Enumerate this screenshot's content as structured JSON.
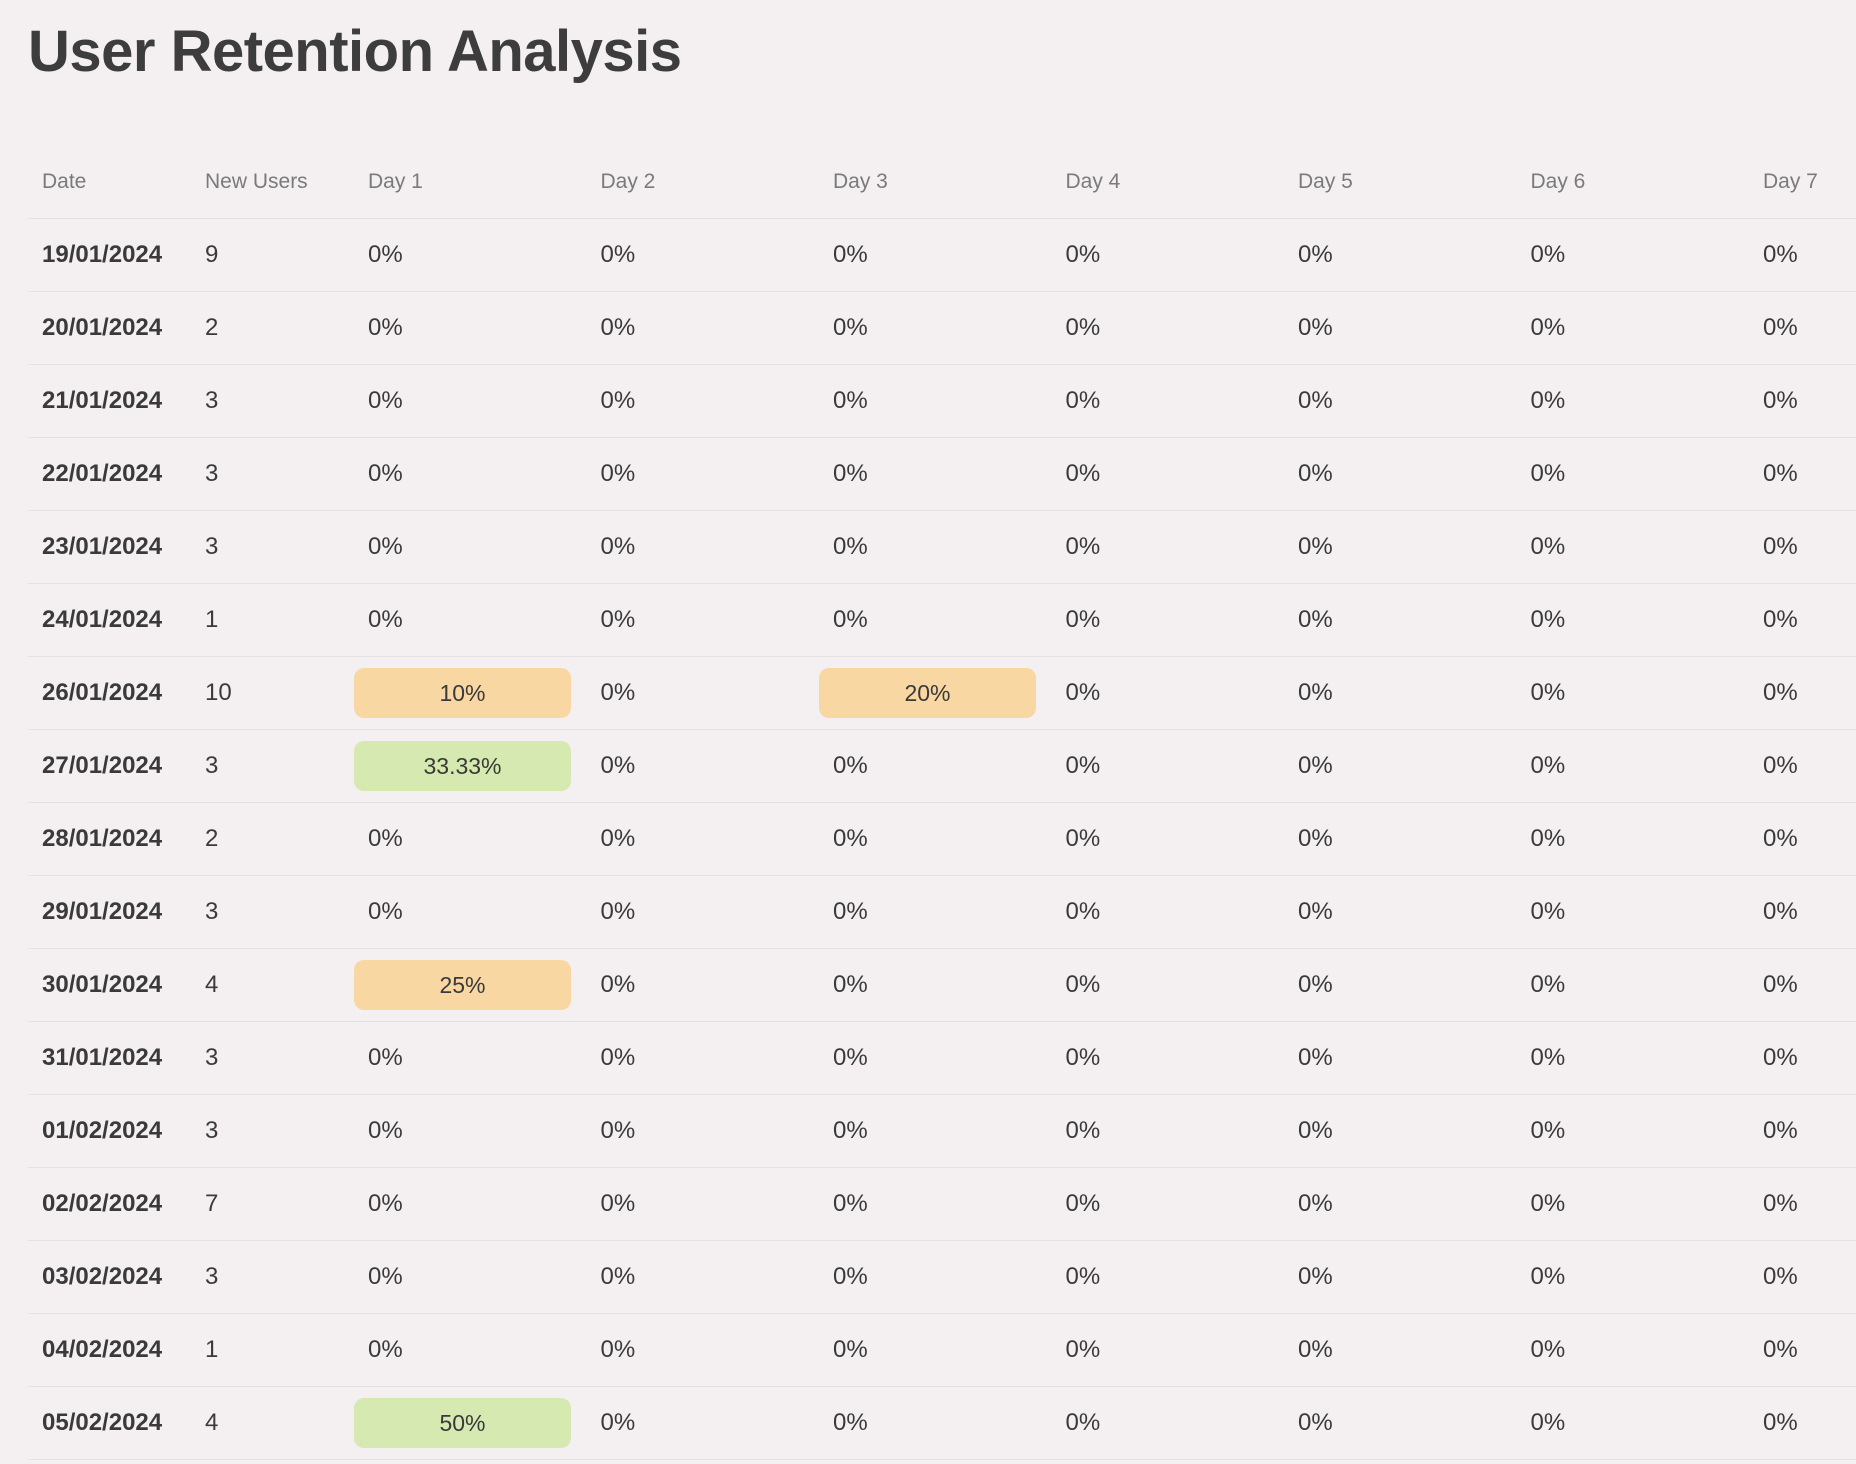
{
  "page": {
    "title": "User Retention Analysis"
  },
  "table": {
    "headers": [
      "Date",
      "New Users",
      "Day 1",
      "Day 2",
      "Day 3",
      "Day 4",
      "Day 5",
      "Day 6",
      "Day 7"
    ],
    "highlight_colors": {
      "orange": "#f8d7a2",
      "green": "#d5e9b0"
    },
    "rows": [
      {
        "date": "19/01/2024",
        "new_users": "9",
        "days": [
          "0%",
          "0%",
          "0%",
          "0%",
          "0%",
          "0%",
          "0%"
        ],
        "highlights": [
          null,
          null,
          null,
          null,
          null,
          null,
          null
        ]
      },
      {
        "date": "20/01/2024",
        "new_users": "2",
        "days": [
          "0%",
          "0%",
          "0%",
          "0%",
          "0%",
          "0%",
          "0%"
        ],
        "highlights": [
          null,
          null,
          null,
          null,
          null,
          null,
          null
        ]
      },
      {
        "date": "21/01/2024",
        "new_users": "3",
        "days": [
          "0%",
          "0%",
          "0%",
          "0%",
          "0%",
          "0%",
          "0%"
        ],
        "highlights": [
          null,
          null,
          null,
          null,
          null,
          null,
          null
        ]
      },
      {
        "date": "22/01/2024",
        "new_users": "3",
        "days": [
          "0%",
          "0%",
          "0%",
          "0%",
          "0%",
          "0%",
          "0%"
        ],
        "highlights": [
          null,
          null,
          null,
          null,
          null,
          null,
          null
        ]
      },
      {
        "date": "23/01/2024",
        "new_users": "3",
        "days": [
          "0%",
          "0%",
          "0%",
          "0%",
          "0%",
          "0%",
          "0%"
        ],
        "highlights": [
          null,
          null,
          null,
          null,
          null,
          null,
          null
        ]
      },
      {
        "date": "24/01/2024",
        "new_users": "1",
        "days": [
          "0%",
          "0%",
          "0%",
          "0%",
          "0%",
          "0%",
          "0%"
        ],
        "highlights": [
          null,
          null,
          null,
          null,
          null,
          null,
          null
        ]
      },
      {
        "date": "26/01/2024",
        "new_users": "10",
        "days": [
          "10%",
          "0%",
          "20%",
          "0%",
          "0%",
          "0%",
          "0%"
        ],
        "highlights": [
          "orange",
          null,
          "orange",
          null,
          null,
          null,
          null
        ]
      },
      {
        "date": "27/01/2024",
        "new_users": "3",
        "days": [
          "33.33%",
          "0%",
          "0%",
          "0%",
          "0%",
          "0%",
          "0%"
        ],
        "highlights": [
          "green",
          null,
          null,
          null,
          null,
          null,
          null
        ]
      },
      {
        "date": "28/01/2024",
        "new_users": "2",
        "days": [
          "0%",
          "0%",
          "0%",
          "0%",
          "0%",
          "0%",
          "0%"
        ],
        "highlights": [
          null,
          null,
          null,
          null,
          null,
          null,
          null
        ]
      },
      {
        "date": "29/01/2024",
        "new_users": "3",
        "days": [
          "0%",
          "0%",
          "0%",
          "0%",
          "0%",
          "0%",
          "0%"
        ],
        "highlights": [
          null,
          null,
          null,
          null,
          null,
          null,
          null
        ]
      },
      {
        "date": "30/01/2024",
        "new_users": "4",
        "days": [
          "25%",
          "0%",
          "0%",
          "0%",
          "0%",
          "0%",
          "0%"
        ],
        "highlights": [
          "orange",
          null,
          null,
          null,
          null,
          null,
          null
        ]
      },
      {
        "date": "31/01/2024",
        "new_users": "3",
        "days": [
          "0%",
          "0%",
          "0%",
          "0%",
          "0%",
          "0%",
          "0%"
        ],
        "highlights": [
          null,
          null,
          null,
          null,
          null,
          null,
          null
        ]
      },
      {
        "date": "01/02/2024",
        "new_users": "3",
        "days": [
          "0%",
          "0%",
          "0%",
          "0%",
          "0%",
          "0%",
          "0%"
        ],
        "highlights": [
          null,
          null,
          null,
          null,
          null,
          null,
          null
        ]
      },
      {
        "date": "02/02/2024",
        "new_users": "7",
        "days": [
          "0%",
          "0%",
          "0%",
          "0%",
          "0%",
          "0%",
          "0%"
        ],
        "highlights": [
          null,
          null,
          null,
          null,
          null,
          null,
          null
        ]
      },
      {
        "date": "03/02/2024",
        "new_users": "3",
        "days": [
          "0%",
          "0%",
          "0%",
          "0%",
          "0%",
          "0%",
          "0%"
        ],
        "highlights": [
          null,
          null,
          null,
          null,
          null,
          null,
          null
        ]
      },
      {
        "date": "04/02/2024",
        "new_users": "1",
        "days": [
          "0%",
          "0%",
          "0%",
          "0%",
          "0%",
          "0%",
          "0%"
        ],
        "highlights": [
          null,
          null,
          null,
          null,
          null,
          null,
          null
        ]
      },
      {
        "date": "05/02/2024",
        "new_users": "4",
        "days": [
          "50%",
          "0%",
          "0%",
          "0%",
          "0%",
          "0%",
          "0%"
        ],
        "highlights": [
          "green",
          null,
          null,
          null,
          null,
          null,
          null
        ]
      }
    ]
  }
}
